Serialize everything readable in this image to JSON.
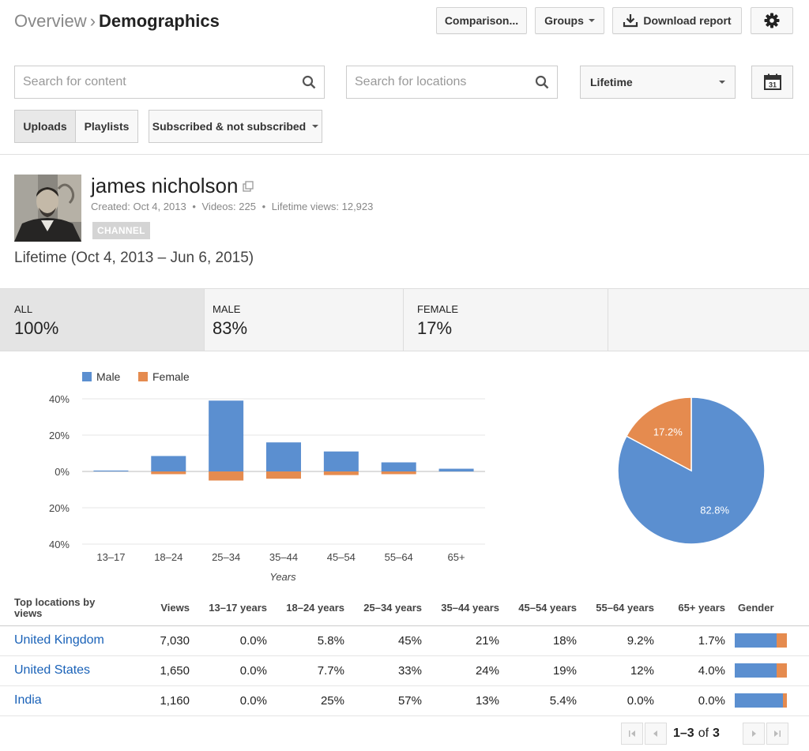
{
  "breadcrumb": {
    "parent": "Overview",
    "separator": "›",
    "current": "Demographics"
  },
  "toolbar": {
    "comparison": "Comparison...",
    "groups": "Groups",
    "download": "Download report"
  },
  "filters": {
    "content_placeholder": "Search for content",
    "locations_placeholder": "Search for locations",
    "date_range": "Lifetime",
    "calendar_day": "31",
    "uploads": "Uploads",
    "playlists": "Playlists",
    "subscription": "Subscribed & not subscribed"
  },
  "channel": {
    "name": "james nicholson",
    "created": "Created: Oct 4, 2013",
    "videos": "Videos: 225",
    "lifetime_views": "Lifetime views: 12,923",
    "dot": "•",
    "badge": "CHANNEL",
    "period": "Lifetime (Oct 4, 2013 – Jun 6, 2015)"
  },
  "stats": [
    {
      "label": "ALL",
      "value": "100%"
    },
    {
      "label": "MALE",
      "value": "83%"
    },
    {
      "label": "FEMALE",
      "value": "17%"
    }
  ],
  "colors": {
    "male": "#5b8fd0",
    "female": "#e58b4f",
    "link": "#1a62b8"
  },
  "chart_data": [
    {
      "type": "bar",
      "xlabel": "Years",
      "categories": [
        "13–17",
        "18–24",
        "25–34",
        "35–44",
        "45–54",
        "55–64",
        "65+"
      ],
      "yticks": [
        "40%",
        "20%",
        "0%",
        "20%",
        "40%"
      ],
      "ylim": [
        -40,
        40
      ],
      "legend": "top-left",
      "series": [
        {
          "name": "Male",
          "values": [
            0.5,
            8.5,
            39,
            16,
            11,
            5,
            1.5
          ]
        },
        {
          "name": "Female",
          "values": [
            0,
            -1.5,
            -5,
            -4,
            -2,
            -1.5,
            0
          ]
        }
      ]
    },
    {
      "type": "pie",
      "labels": [
        "Male",
        "Female"
      ],
      "values": [
        82.8,
        17.2
      ],
      "data_labels": [
        "82.8%",
        "17.2%"
      ]
    }
  ],
  "table": {
    "headers": [
      "Top locations by views",
      "Views",
      "13–17 years",
      "18–24 years",
      "25–34 years",
      "35–44 years",
      "45–54 years",
      "55–64 years",
      "65+ years",
      "Gender"
    ],
    "rows": [
      {
        "name": "United Kingdom",
        "cells": [
          "7,030",
          "0.0%",
          "5.8%",
          "45%",
          "21%",
          "18%",
          "9.2%",
          "1.7%"
        ],
        "male_share": 0.8
      },
      {
        "name": "United States",
        "cells": [
          "1,650",
          "0.0%",
          "7.7%",
          "33%",
          "24%",
          "19%",
          "12%",
          "4.0%"
        ],
        "male_share": 0.8
      },
      {
        "name": "India",
        "cells": [
          "1,160",
          "0.0%",
          "25%",
          "57%",
          "13%",
          "5.4%",
          "0.0%",
          "0.0%"
        ],
        "male_share": 0.93
      }
    ]
  },
  "pagination": {
    "range": "1–3",
    "of": "of",
    "total": "3"
  }
}
